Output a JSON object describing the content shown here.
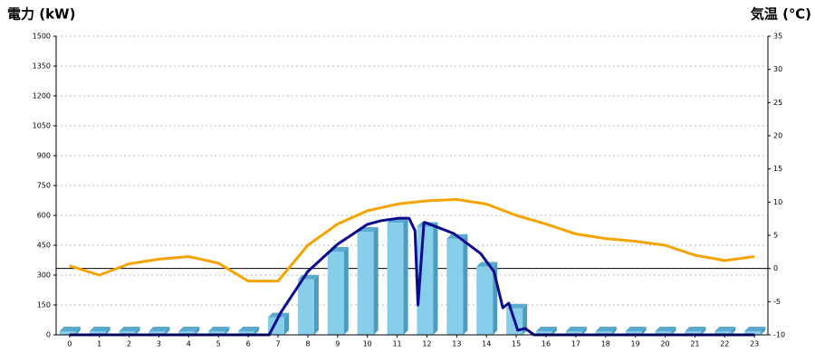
{
  "chart_data": {
    "type": "bar",
    "y_label": "電力 (kW)",
    "y2_label": "気温 (℃)",
    "y_label_color": "#1f5fa8",
    "y2_label_color": "#e8821e",
    "x": [
      0,
      1,
      2,
      3,
      4,
      5,
      6,
      7,
      8,
      9,
      10,
      11,
      12,
      13,
      14,
      15,
      16,
      17,
      18,
      19,
      20,
      21,
      22,
      23
    ],
    "xlim": [
      -0.45,
      23.45
    ],
    "xticks": [
      0,
      1,
      2,
      3,
      4,
      5,
      6,
      7,
      8,
      9,
      10,
      11,
      12,
      13,
      14,
      15,
      16,
      17,
      18,
      19,
      20,
      21,
      22,
      23
    ],
    "ylim": [
      0,
      1500
    ],
    "yticks": [
      0,
      150,
      300,
      450,
      600,
      750,
      900,
      1050,
      1200,
      1350,
      1500
    ],
    "y2lim": [
      -10,
      35
    ],
    "y2ticks": [
      -10,
      -5,
      0,
      5,
      10,
      15,
      20,
      25,
      30,
      35
    ],
    "grid": true,
    "series": [
      {
        "type": "bar",
        "color": "#87ceeb",
        "values": [
          0,
          0,
          0,
          0,
          0,
          0,
          0,
          70,
          260,
          400,
          500,
          545,
          525,
          465,
          325,
          115,
          0,
          0,
          0,
          0,
          0,
          0,
          0,
          0
        ]
      },
      {
        "type": "line",
        "axis": "y2",
        "color": "#f5a300",
        "values": [
          0.4,
          -1,
          0.7,
          1.4,
          1.8,
          0.8,
          -1.9,
          -1.9,
          3.5,
          6.7,
          8.7,
          9.7,
          10.2,
          10.4,
          9.7,
          8.0,
          6.7,
          5.2,
          4.5,
          4.1,
          3.5,
          2.0,
          1.2,
          1.8
        ]
      },
      {
        "type": "line",
        "color": "#0a0a8c",
        "x": [
          0,
          6.7,
          7.1,
          8.0,
          9.0,
          10.0,
          10.45,
          11.05,
          11.4,
          11.6,
          11.7,
          11.9,
          11.95,
          12.9,
          13.8,
          14.25,
          14.55,
          14.75,
          15.05,
          15.3,
          15.6,
          23
        ],
        "values": [
          0,
          0,
          114,
          318,
          455,
          555,
          573,
          586,
          586,
          523,
          150,
          564,
          564,
          509,
          409,
          318,
          136,
          159,
          23,
          32,
          0,
          0
        ]
      }
    ]
  }
}
